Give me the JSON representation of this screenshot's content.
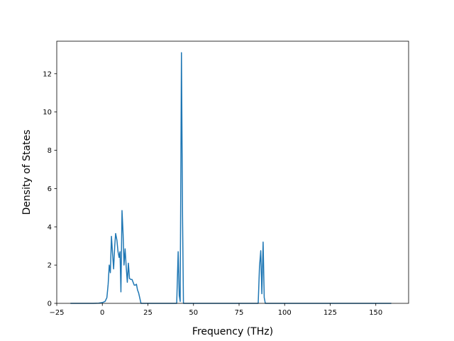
{
  "chart_data": {
    "type": "line",
    "title": "",
    "xlabel": "Frequency (THz)",
    "ylabel": "Density of States",
    "xlim": [
      -25,
      168
    ],
    "ylim": [
      0,
      13.7
    ],
    "xticks": [
      -25,
      0,
      25,
      50,
      75,
      100,
      125,
      150
    ],
    "xtick_labels": [
      "−25",
      "0",
      "25",
      "50",
      "75",
      "100",
      "125",
      "150"
    ],
    "yticks": [
      0,
      2,
      4,
      6,
      8,
      10,
      12
    ],
    "ytick_labels": [
      "0",
      "2",
      "4",
      "6",
      "8",
      "10",
      "12"
    ],
    "grid": false,
    "legend": "none",
    "series": [
      {
        "color": "#1f77b4",
        "points": [
          [
            -17.5,
            0
          ],
          [
            -5,
            0
          ],
          [
            -2,
            0.01
          ],
          [
            0,
            0.04
          ],
          [
            1.5,
            0.1
          ],
          [
            2.5,
            0.3
          ],
          [
            3.2,
            1.0
          ],
          [
            3.8,
            2.0
          ],
          [
            4.4,
            1.6
          ],
          [
            5.0,
            3.5
          ],
          [
            5.6,
            2.6
          ],
          [
            6.2,
            1.8
          ],
          [
            6.8,
            3.0
          ],
          [
            7.3,
            3.65
          ],
          [
            8.0,
            3.3
          ],
          [
            8.6,
            2.7
          ],
          [
            9.2,
            2.4
          ],
          [
            9.7,
            2.7
          ],
          [
            10.2,
            0.6
          ],
          [
            10.8,
            4.85
          ],
          [
            11.4,
            3.6
          ],
          [
            11.9,
            2.0
          ],
          [
            12.5,
            2.85
          ],
          [
            13.1,
            1.9
          ],
          [
            13.7,
            1.1
          ],
          [
            14.3,
            2.1
          ],
          [
            14.9,
            1.3
          ],
          [
            15.6,
            1.25
          ],
          [
            16.3,
            1.25
          ],
          [
            16.9,
            1.1
          ],
          [
            17.5,
            0.95
          ],
          [
            18.1,
            0.95
          ],
          [
            18.7,
            1.0
          ],
          [
            19.3,
            0.7
          ],
          [
            19.9,
            0.55
          ],
          [
            20.5,
            0.3
          ],
          [
            21.2,
            0.0
          ],
          [
            22,
            0
          ],
          [
            40.8,
            0
          ],
          [
            41.6,
            2.7
          ],
          [
            42.2,
            0.4
          ],
          [
            42.7,
            0.1
          ],
          [
            43.4,
            13.1
          ],
          [
            44.0,
            4.5
          ],
          [
            44.5,
            0.0
          ],
          [
            85.5,
            0
          ],
          [
            86.2,
            1.9
          ],
          [
            86.9,
            2.75
          ],
          [
            87.5,
            0.5
          ],
          [
            88.2,
            3.2
          ],
          [
            88.8,
            0.3
          ],
          [
            89.4,
            0
          ],
          [
            158.5,
            0
          ]
        ]
      }
    ]
  }
}
